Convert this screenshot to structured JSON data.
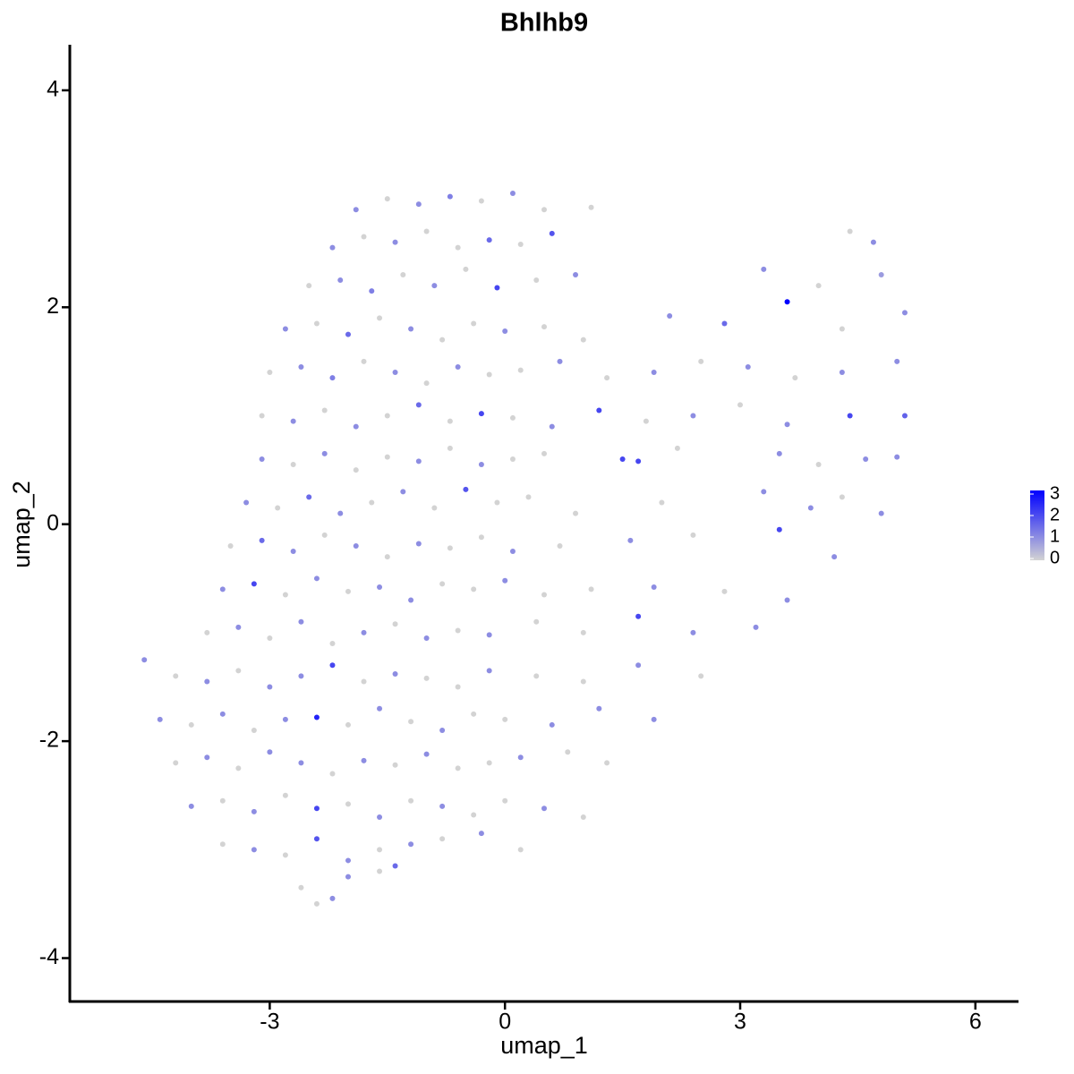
{
  "chart_data": {
    "type": "scatter",
    "title": "Bhlhb9",
    "xlabel": "umap_1",
    "ylabel": "umap_2",
    "xlim": [
      -5.55,
      6.55
    ],
    "ylim": [
      -4.4,
      4.42
    ],
    "xticks": [
      -3,
      0,
      3,
      6
    ],
    "yticks": [
      -4,
      -2,
      0,
      2,
      4
    ],
    "color_low": "#d3d3d3",
    "color_high": "#0000ff",
    "clim": [
      0,
      3
    ],
    "cticks": [
      0,
      1,
      2,
      3
    ],
    "x": [
      -1.9,
      -1.5,
      -1.1,
      -0.7,
      -0.3,
      0.1,
      0.5,
      1.1,
      -2.2,
      -1.8,
      -1.4,
      -1.0,
      -0.6,
      -0.2,
      0.2,
      0.6,
      4.4,
      4.7,
      -2.5,
      -2.1,
      -1.7,
      -1.3,
      -0.9,
      -0.5,
      -0.1,
      0.4,
      0.9,
      3.3,
      4.0,
      4.8,
      -2.8,
      -2.4,
      -2.0,
      -1.6,
      -1.2,
      -0.8,
      -0.4,
      0,
      0.5,
      1.0,
      2.1,
      2.8,
      3.6,
      4.3,
      5.1,
      -3.0,
      -2.6,
      -2.2,
      -1.8,
      -1.4,
      -1.0,
      -0.6,
      -0.2,
      0.2,
      0.7,
      1.3,
      1.9,
      2.5,
      3.1,
      3.7,
      4.3,
      5.0,
      -3.1,
      -2.7,
      -2.3,
      -1.9,
      -1.5,
      -1.1,
      -0.7,
      -0.3,
      0.1,
      0.6,
      1.2,
      1.8,
      2.4,
      3.0,
      3.6,
      4.4,
      5.1,
      -3.1,
      -2.7,
      -2.3,
      -1.9,
      -1.5,
      -1.1,
      -0.7,
      -0.3,
      0.1,
      0.5,
      1.5,
      1.7,
      2.2,
      3.5,
      4.0,
      4.6,
      5.0,
      -3.3,
      -2.9,
      -2.5,
      -2.1,
      -1.7,
      -1.3,
      -0.9,
      -0.5,
      -0.1,
      0.3,
      0.9,
      2.0,
      3.3,
      3.9,
      4.3,
      4.8,
      -3.5,
      -3.1,
      -2.7,
      -2.3,
      -1.9,
      -1.5,
      -1.1,
      -0.7,
      -0.3,
      0.1,
      0.7,
      1.6,
      2.4,
      3.5,
      4.2,
      -3.6,
      -3.2,
      -2.8,
      -2.4,
      -2.0,
      -1.6,
      -1.2,
      -0.8,
      -0.4,
      0.0,
      0.5,
      1.1,
      1.9,
      2.8,
      3.6,
      -3.8,
      -3.4,
      -3.0,
      -2.6,
      -2.2,
      -1.8,
      -1.4,
      -1.0,
      -0.6,
      -0.2,
      0.4,
      1.0,
      1.7,
      2.4,
      3.2,
      -4.6,
      -4.2,
      -3.8,
      -3.4,
      -3.0,
      -2.6,
      -2.2,
      -1.8,
      -1.4,
      -1.0,
      -0.6,
      -0.2,
      0.4,
      1.0,
      1.7,
      2.5,
      -4.4,
      -4.0,
      -3.6,
      -3.2,
      -2.8,
      -2.4,
      -2.0,
      -1.6,
      -1.2,
      -0.8,
      -0.4,
      0,
      0.6,
      1.2,
      1.9,
      -4.2,
      -3.8,
      -3.4,
      -3.0,
      -2.6,
      -2.2,
      -1.8,
      -1.4,
      -1.0,
      -0.6,
      -0.2,
      0.2,
      0.8,
      1.3,
      -4.0,
      -3.6,
      -3.2,
      -2.8,
      -2.4,
      -2.0,
      -1.6,
      -1.2,
      -0.8,
      -0.4,
      0.0,
      0.5,
      1.0,
      -3.6,
      -3.2,
      -2.8,
      -2.4,
      -2.0,
      -1.6,
      -1.2,
      -0.8,
      -0.3,
      0.2,
      -2.6,
      -2.4,
      -2.2,
      -2.0,
      -1.6,
      -1.4
    ],
    "y": [
      2.9,
      3.0,
      2.95,
      3.02,
      2.98,
      3.05,
      2.9,
      2.92,
      2.55,
      2.65,
      2.6,
      2.7,
      2.55,
      2.62,
      2.58,
      2.68,
      2.7,
      2.6,
      2.2,
      2.25,
      2.15,
      2.3,
      2.2,
      2.35,
      2.18,
      2.25,
      2.3,
      2.35,
      2.2,
      2.3,
      1.8,
      1.85,
      1.75,
      1.9,
      1.8,
      1.7,
      1.85,
      1.78,
      1.82,
      1.7,
      1.92,
      1.85,
      2.05,
      1.8,
      1.95,
      1.4,
      1.45,
      1.35,
      1.5,
      1.4,
      1.3,
      1.45,
      1.38,
      1.42,
      1.5,
      1.35,
      1.4,
      1.5,
      1.45,
      1.35,
      1.4,
      1.5,
      1.0,
      0.95,
      1.05,
      0.9,
      1.0,
      1.1,
      0.95,
      1.02,
      0.98,
      0.9,
      1.05,
      0.95,
      1.0,
      1.1,
      0.92,
      1.0,
      1.0,
      0.6,
      0.55,
      0.65,
      0.5,
      0.62,
      0.58,
      0.7,
      0.55,
      0.6,
      0.65,
      0.6,
      0.58,
      0.7,
      0.65,
      0.55,
      0.6,
      0.62,
      0.2,
      0.15,
      0.25,
      0.1,
      0.2,
      0.3,
      0.15,
      0.32,
      0.2,
      0.25,
      0.1,
      0.2,
      0.3,
      0.15,
      0.25,
      0.1,
      -0.2,
      -0.15,
      -0.25,
      -0.1,
      -0.2,
      -0.3,
      -0.18,
      -0.22,
      -0.12,
      -0.25,
      -0.2,
      -0.15,
      -0.1,
      -0.05,
      -0.3,
      -0.6,
      -0.55,
      -0.65,
      -0.5,
      -0.62,
      -0.58,
      -0.7,
      -0.55,
      -0.6,
      -0.52,
      -0.65,
      -0.6,
      -0.58,
      -0.62,
      -0.7,
      -1.0,
      -0.95,
      -1.05,
      -0.9,
      -1.1,
      -1.0,
      -0.92,
      -1.05,
      -0.98,
      -1.02,
      -0.9,
      -1.0,
      -0.85,
      -1.0,
      -0.95,
      -1.25,
      -1.4,
      -1.45,
      -1.35,
      -1.5,
      -1.4,
      -1.3,
      -1.45,
      -1.38,
      -1.42,
      -1.5,
      -1.35,
      -1.4,
      -1.45,
      -1.3,
      -1.4,
      -1.8,
      -1.85,
      -1.75,
      -1.9,
      -1.8,
      -1.78,
      -1.85,
      -1.7,
      -1.82,
      -1.9,
      -1.75,
      -1.8,
      -1.85,
      -1.7,
      -1.8,
      -2.2,
      -2.15,
      -2.25,
      -2.1,
      -2.2,
      -2.3,
      -2.18,
      -2.22,
      -2.12,
      -2.25,
      -2.2,
      -2.15,
      -2.1,
      -2.2,
      -2.6,
      -2.55,
      -2.65,
      -2.5,
      -2.62,
      -2.58,
      -2.7,
      -2.55,
      -2.6,
      -2.68,
      -2.55,
      -2.62,
      -2.7,
      -2.95,
      -3.0,
      -3.05,
      -2.9,
      -3.1,
      -3.0,
      -2.95,
      -2.9,
      -2.85,
      -3.0,
      -3.35,
      -3.5,
      -3.45,
      -3.25,
      -3.2,
      -3.15
    ],
    "values": [
      1,
      0,
      1,
      1.2,
      0,
      1,
      0,
      0,
      1,
      0,
      1,
      0,
      0,
      1.5,
      0,
      1.8,
      0,
      1,
      0,
      1,
      1.2,
      0,
      1,
      0,
      2,
      0,
      1,
      1,
      0,
      0.8,
      1,
      0,
      1.5,
      0,
      1,
      0,
      0,
      1,
      0,
      0,
      1,
      1.5,
      3,
      0,
      1,
      0,
      1,
      1.2,
      0,
      1,
      0,
      1,
      0,
      0,
      1,
      0,
      1,
      0,
      1,
      0,
      1,
      1,
      0,
      1,
      0,
      1,
      0,
      1.5,
      0,
      2,
      0,
      1,
      2,
      0,
      1,
      0,
      1,
      2,
      1.6,
      1,
      0,
      1,
      0,
      0,
      1,
      0,
      1,
      0,
      0,
      2,
      2,
      0,
      1,
      0,
      1,
      1,
      1,
      0,
      1.5,
      1,
      0,
      1,
      0,
      1.8,
      0,
      0,
      0,
      0,
      1,
      1,
      0,
      1,
      0,
      1.5,
      1,
      0,
      1,
      0,
      1,
      0,
      0,
      1,
      0,
      1,
      0,
      2,
      1,
      1,
      2,
      0,
      1,
      0,
      1,
      1,
      0,
      0,
      1,
      0,
      0,
      1,
      0,
      1,
      0,
      1,
      0,
      1,
      0,
      1,
      0,
      1,
      0,
      1,
      0,
      0,
      2,
      1,
      1,
      1,
      0,
      1,
      0,
      1,
      1,
      2,
      0,
      1,
      0,
      0,
      1,
      0,
      0,
      1,
      0,
      1,
      0,
      1,
      0,
      1,
      2.5,
      0,
      1,
      0,
      1,
      0,
      0,
      1,
      1,
      1,
      0,
      1,
      0,
      1,
      1,
      0,
      1,
      0,
      1,
      0,
      0,
      1,
      0,
      0,
      1,
      0,
      1,
      0,
      2,
      0,
      1,
      0,
      1,
      0,
      0,
      1,
      0,
      0,
      1,
      0,
      1.8,
      1,
      0,
      1,
      0,
      1,
      0,
      0,
      0,
      1,
      1,
      0,
      1.5
    ]
  }
}
